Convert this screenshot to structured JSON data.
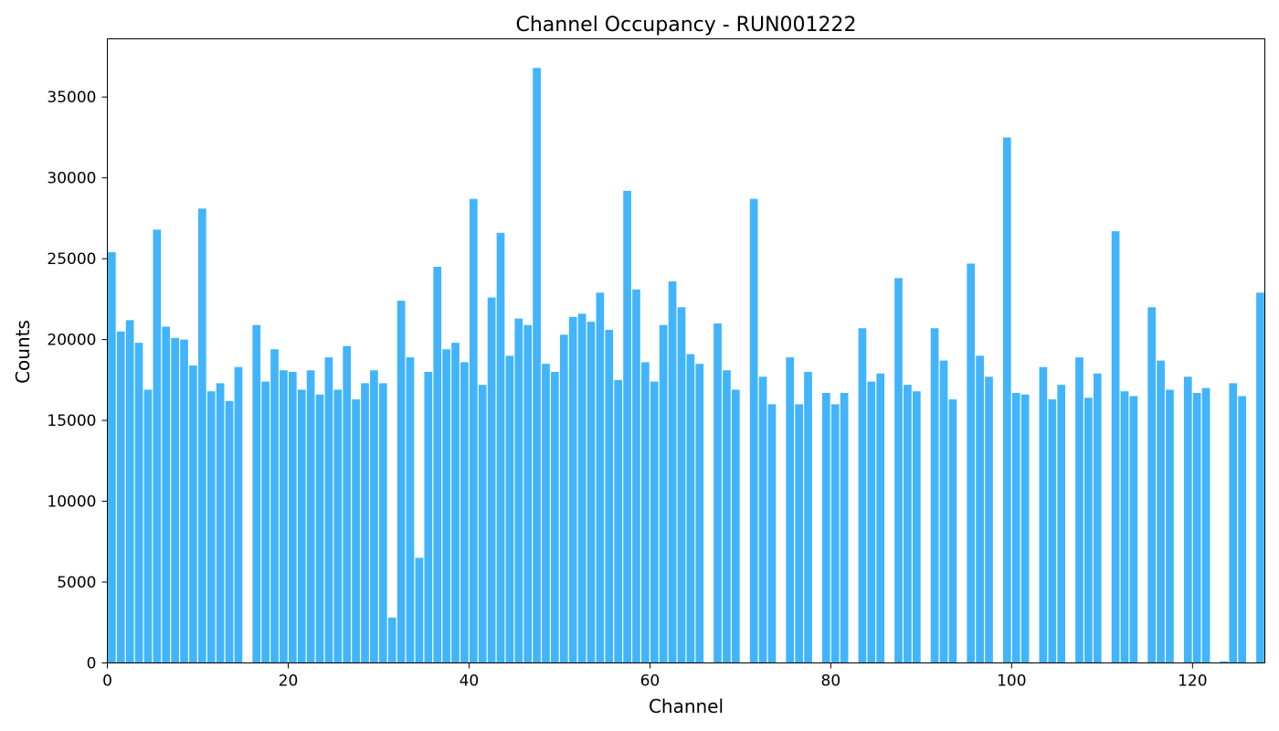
{
  "chart_data": {
    "type": "bar",
    "title": "Channel Occupancy - RUN001222",
    "xlabel": "Channel",
    "ylabel": "Counts",
    "xlim": [
      0,
      128
    ],
    "ylim": [
      0,
      38600
    ],
    "x_ticks": [
      0,
      20,
      40,
      60,
      80,
      100,
      120
    ],
    "y_ticks": [
      0,
      5000,
      10000,
      15000,
      20000,
      25000,
      30000,
      35000
    ],
    "grid": false,
    "bar_color": "#42b4fb",
    "x": [
      0,
      1,
      2,
      3,
      4,
      5,
      6,
      7,
      8,
      9,
      10,
      11,
      12,
      13,
      14,
      15,
      16,
      17,
      18,
      19,
      20,
      21,
      22,
      23,
      24,
      25,
      26,
      27,
      28,
      29,
      30,
      31,
      32,
      33,
      34,
      35,
      36,
      37,
      38,
      39,
      40,
      41,
      42,
      43,
      44,
      45,
      46,
      47,
      48,
      49,
      50,
      51,
      52,
      53,
      54,
      55,
      56,
      57,
      58,
      59,
      60,
      61,
      62,
      63,
      64,
      65,
      66,
      67,
      68,
      69,
      70,
      71,
      72,
      73,
      74,
      75,
      76,
      77,
      78,
      79,
      80,
      81,
      82,
      83,
      84,
      85,
      86,
      87,
      88,
      89,
      90,
      91,
      92,
      93,
      94,
      95,
      96,
      97,
      98,
      99,
      100,
      101,
      102,
      103,
      104,
      105,
      106,
      107,
      108,
      109,
      110,
      111,
      112,
      113,
      114,
      115,
      116,
      117,
      118,
      119,
      120,
      121,
      122,
      123,
      124,
      125,
      126,
      127
    ],
    "values": [
      25400,
      20500,
      21200,
      19800,
      16900,
      26800,
      20800,
      20100,
      20000,
      18400,
      28100,
      16800,
      17300,
      16200,
      18300,
      0,
      20900,
      17400,
      19400,
      18100,
      18000,
      16900,
      18100,
      16600,
      18900,
      16900,
      19600,
      16300,
      17300,
      18100,
      17300,
      2800,
      22400,
      18900,
      6500,
      18000,
      24500,
      19400,
      19800,
      18600,
      28700,
      17200,
      22600,
      26600,
      19000,
      21300,
      20900,
      36800,
      18500,
      18000,
      20300,
      21400,
      21600,
      21100,
      22900,
      20600,
      17500,
      29200,
      23100,
      18600,
      17400,
      20900,
      23600,
      22000,
      19100,
      18500,
      0,
      21000,
      18100,
      16900,
      0,
      28700,
      17700,
      16000,
      0,
      18900,
      16000,
      18000,
      0,
      16700,
      16000,
      16700,
      0,
      20700,
      17400,
      17900,
      0,
      23800,
      17200,
      16800,
      0,
      20700,
      18700,
      16300,
      0,
      24700,
      19000,
      17700,
      0,
      32500,
      16700,
      16600,
      0,
      18300,
      16300,
      17200,
      0,
      18900,
      16400,
      17900,
      0,
      26700,
      16800,
      16500,
      0,
      22000,
      18700,
      16900,
      0,
      17700,
      16700,
      17000,
      0,
      100,
      17300,
      16500,
      0,
      22900
    ]
  }
}
